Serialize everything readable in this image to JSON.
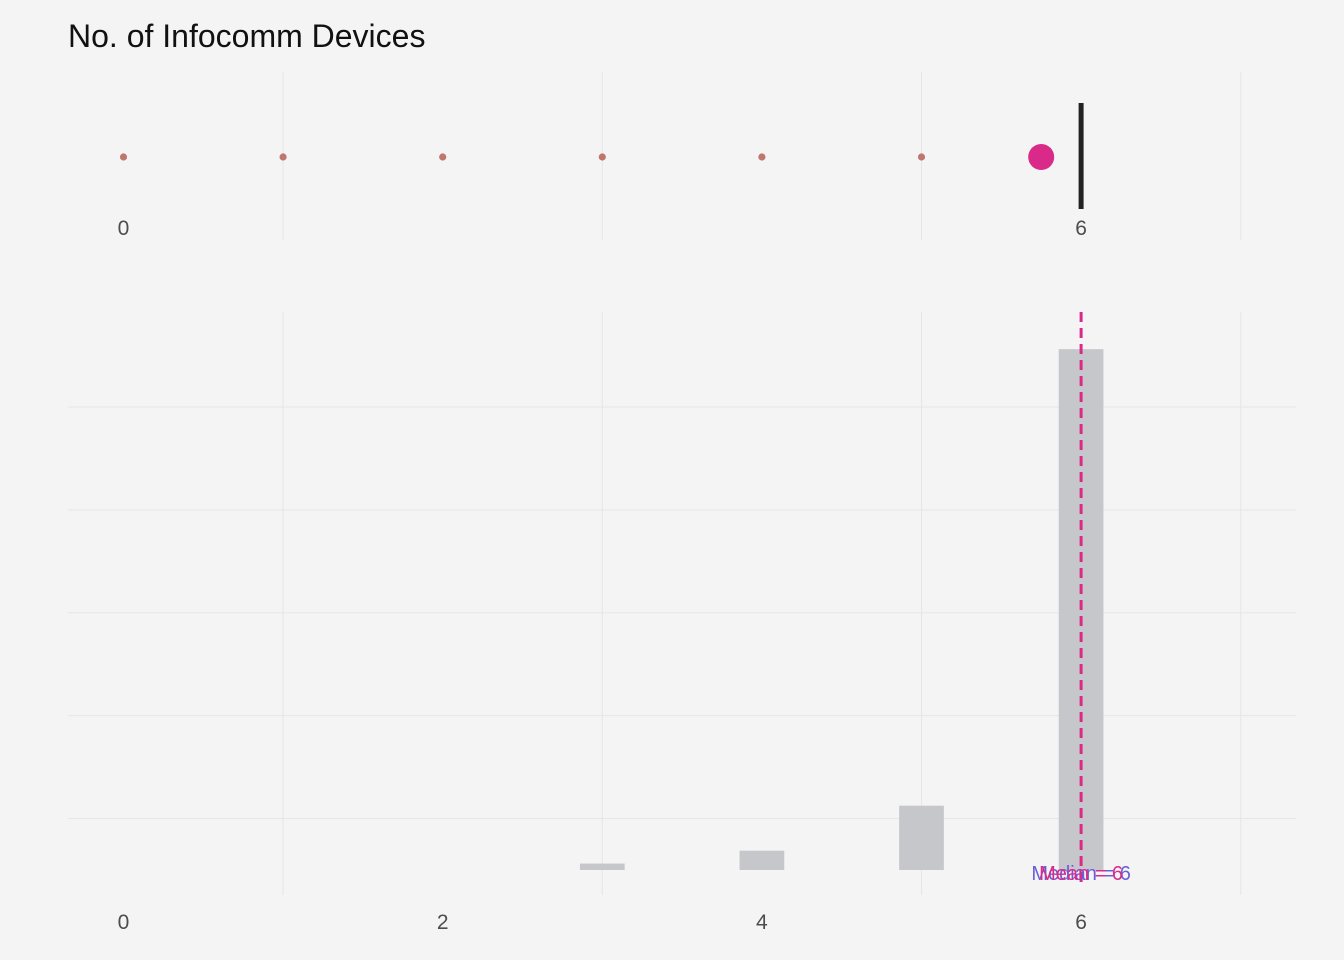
{
  "chart_data": [
    {
      "type": "dot",
      "title": "No. of Infocomm Devices",
      "x": [
        0,
        1,
        2,
        3,
        4,
        5
      ],
      "large_point_x": 5.75,
      "line_x": 6,
      "labels": [
        {
          "x": 0,
          "text": "0"
        },
        {
          "x": 6,
          "text": "6"
        }
      ],
      "x_gridlines": [
        1,
        3,
        5,
        7
      ],
      "colors": {
        "small_dots": "#c0766e",
        "large_dot": "#d92a8a",
        "line": "#222222",
        "label_low": "#c0766e",
        "label_high": "#222222"
      }
    },
    {
      "type": "bar",
      "categories": [
        3,
        4,
        5,
        6
      ],
      "values": [
        1,
        3,
        10,
        81
      ],
      "bar_color": "#c6c7ca",
      "xticks": [
        0,
        2,
        4,
        6
      ],
      "xlim": [
        -0.35,
        7.35
      ],
      "ylim": [
        0,
        86
      ],
      "y_gridlines": [
        8,
        24,
        40,
        56,
        72
      ],
      "x_gridlines": [
        1,
        3,
        5,
        7
      ],
      "vline_x": 6,
      "vline_color": "#d92a8a",
      "annotations": [
        {
          "text": "Median = 6",
          "color": "#6b5ed8"
        },
        {
          "text": "Mean = 6",
          "color": "#d92a8a"
        }
      ]
    }
  ]
}
